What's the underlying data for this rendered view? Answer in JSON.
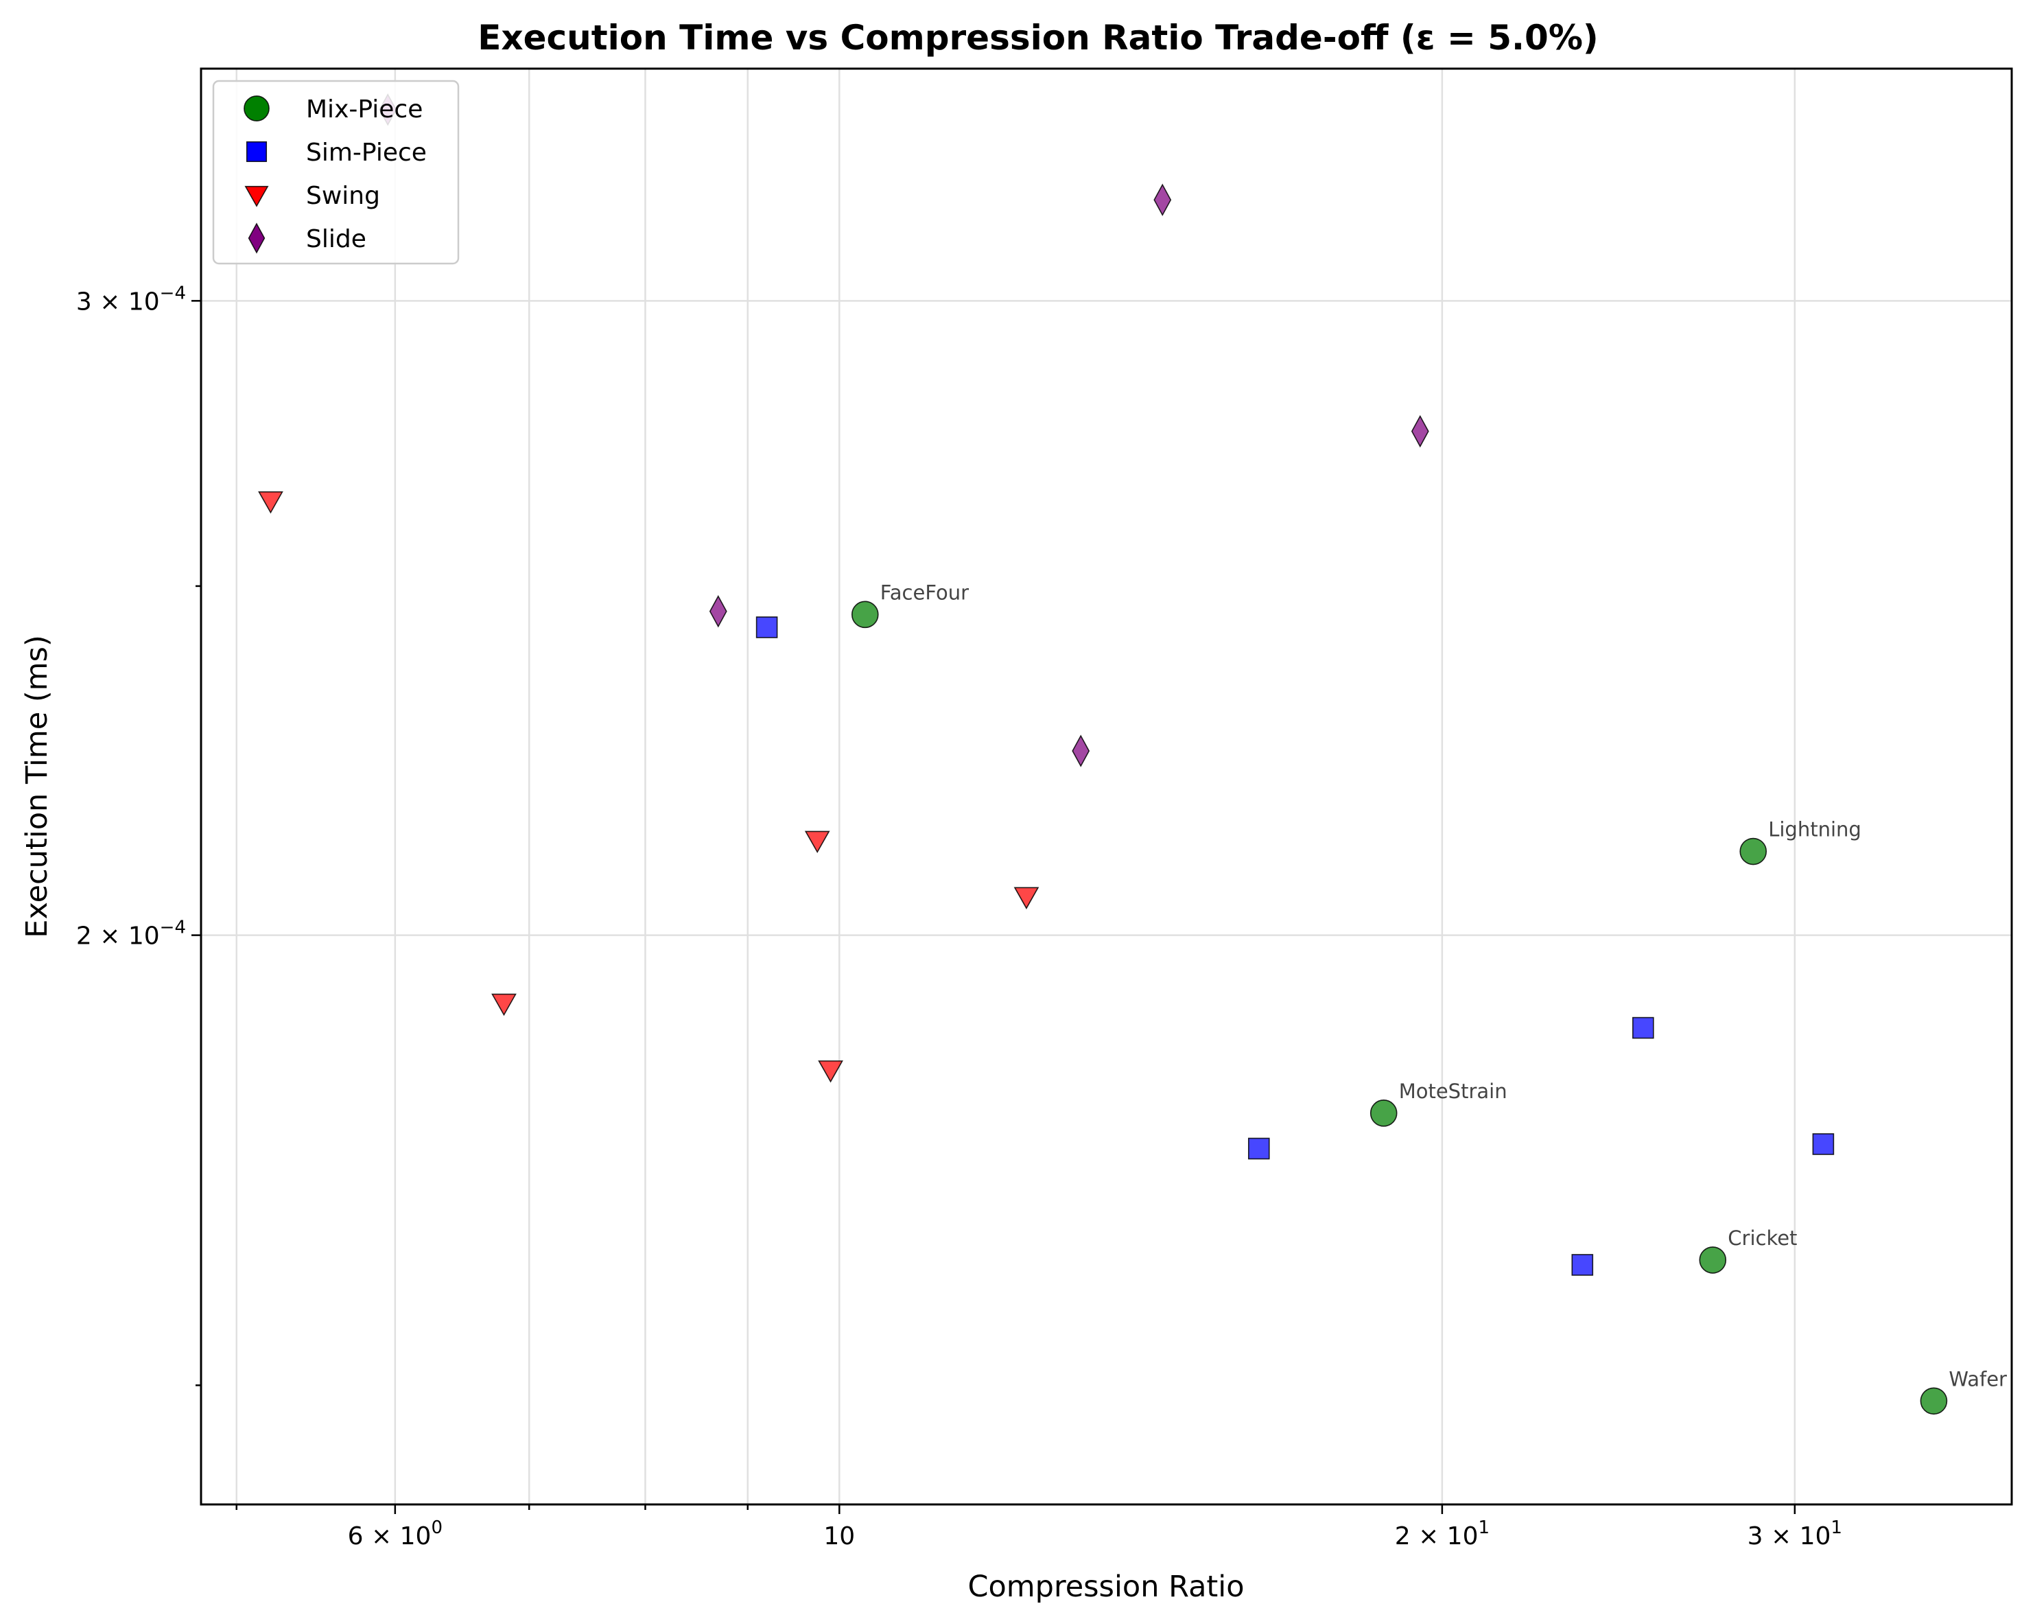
{
  "chart_data": {
    "type": "scatter",
    "title": "Execution Time vs Compression Ratio Trade-off (ε = 5.0%)",
    "xlabel": "Compression Ratio",
    "ylabel": "Execution Time (ms)",
    "xscale": "log",
    "yscale": "log",
    "xlim": [
      4.8,
      38.5
    ],
    "ylim": [
      0.000139,
      0.000348
    ],
    "grid": true,
    "legend_position": "top-left",
    "x_ticks": [
      {
        "value": 6,
        "label": "6 × 10⁻⁰",
        "base": "6 × 10",
        "exp": "0"
      },
      {
        "value": 10,
        "label": "10",
        "base": "10",
        "exp": ""
      },
      {
        "value": 20,
        "label": "2 × 10¹",
        "base": "2 × 10",
        "exp": "1"
      },
      {
        "value": 30,
        "label": "3 × 10¹",
        "base": "3 × 10",
        "exp": "1"
      }
    ],
    "y_ticks": [
      {
        "value": 0.0002,
        "label": "2 × 10⁻⁴",
        "base": "2 × 10",
        "exp": "−4"
      },
      {
        "value": 0.0003,
        "label": "3 × 10⁻⁴",
        "base": "3 × 10",
        "exp": "−4"
      }
    ],
    "series": [
      {
        "name": "Mix-Piece",
        "marker": "circle",
        "color": "#008000",
        "points": [
          {
            "x": 10.3,
            "y": 0.0002455,
            "label": "FaceFour"
          },
          {
            "x": 18.7,
            "y": 0.0001785,
            "label": "MoteStrain"
          },
          {
            "x": 28.6,
            "y": 0.000211,
            "label": "Lightning"
          },
          {
            "x": 27.3,
            "y": 0.0001625,
            "label": "Cricket"
          },
          {
            "x": 35.2,
            "y": 0.0001485,
            "label": "Wafer"
          }
        ]
      },
      {
        "name": "Sim-Piece",
        "marker": "square",
        "color": "#0000ff",
        "points": [
          {
            "x": 9.2,
            "y": 0.0002435
          },
          {
            "x": 16.2,
            "y": 0.0001745
          },
          {
            "x": 23.5,
            "y": 0.000162
          },
          {
            "x": 25.2,
            "y": 0.0001885
          },
          {
            "x": 31.0,
            "y": 0.000175
          }
        ]
      },
      {
        "name": "Swing",
        "marker": "triangle-down",
        "color": "#ff0000",
        "points": [
          {
            "x": 5.2,
            "y": 0.000264
          },
          {
            "x": 6.8,
            "y": 0.0001915
          },
          {
            "x": 9.75,
            "y": 0.0002125
          },
          {
            "x": 9.9,
            "y": 0.0001835
          },
          {
            "x": 12.4,
            "y": 0.000205
          }
        ]
      },
      {
        "name": "Slide",
        "marker": "diamond",
        "color": "#800080",
        "points": [
          {
            "x": 5.95,
            "y": 0.000339
          },
          {
            "x": 8.7,
            "y": 0.000246
          },
          {
            "x": 13.2,
            "y": 0.000225
          },
          {
            "x": 14.5,
            "y": 0.00032
          },
          {
            "x": 19.5,
            "y": 0.000276
          }
        ]
      }
    ]
  }
}
